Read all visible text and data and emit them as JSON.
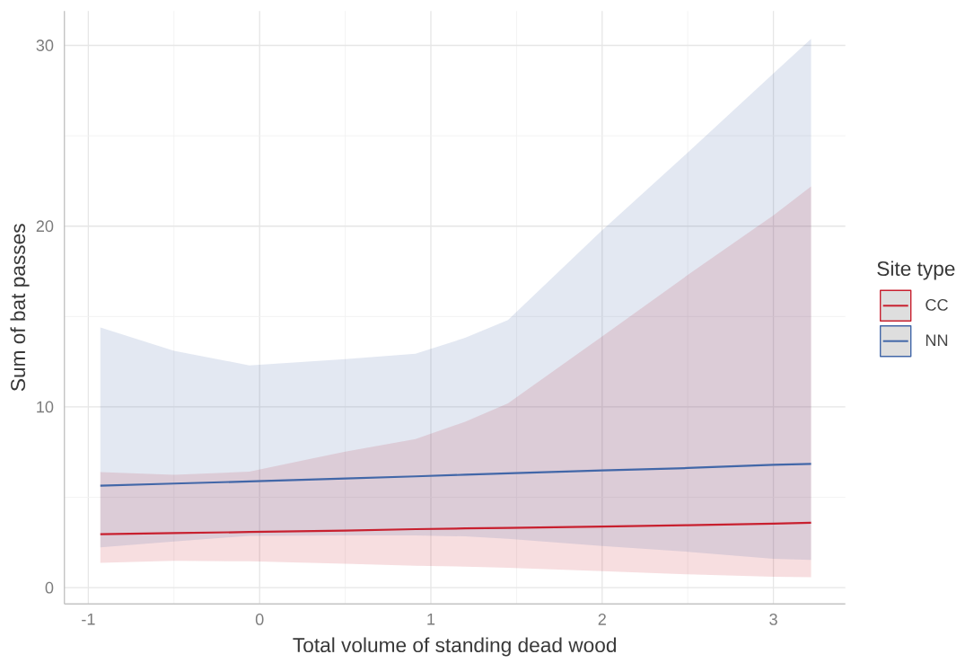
{
  "chart_data": {
    "type": "line",
    "xlabel": "Total volume of standing dead wood",
    "ylabel": "Sum of bat passes",
    "legend_title": "Site type",
    "x": [
      -0.93,
      -0.5,
      -0.06,
      0.5,
      0.91,
      1.2,
      1.45,
      2,
      2.5,
      3,
      3.22
    ],
    "series": [
      {
        "name": "CC",
        "color": "#c8202f",
        "values": [
          2.96,
          3.02,
          3.08,
          3.16,
          3.24,
          3.28,
          3.31,
          3.38,
          3.46,
          3.54,
          3.59
        ],
        "lower": [
          1.37,
          1.49,
          1.46,
          1.32,
          1.21,
          1.17,
          1.1,
          0.91,
          0.74,
          0.61,
          0.58
        ],
        "upper": [
          6.4,
          6.25,
          6.42,
          7.53,
          8.22,
          9.18,
          10.2,
          13.9,
          17.3,
          20.6,
          22.2
        ]
      },
      {
        "name": "NN",
        "color": "#4267a8",
        "values": [
          5.64,
          5.76,
          5.88,
          6.04,
          6.16,
          6.25,
          6.33,
          6.49,
          6.62,
          6.8,
          6.85
        ],
        "lower": [
          2.23,
          2.55,
          2.87,
          2.89,
          2.89,
          2.84,
          2.71,
          2.31,
          1.99,
          1.6,
          1.54
        ],
        "upper": [
          14.4,
          13.1,
          12.3,
          12.65,
          12.94,
          13.82,
          14.8,
          19.77,
          24.07,
          28.45,
          30.36
        ]
      }
    ],
    "xlim": [
      -1.14,
      3.42
    ],
    "ylim": [
      -0.9,
      31.9
    ],
    "xticks": [
      -1,
      {
        "value": -0.5,
        "label": null
      },
      0,
      {
        "value": 0.5,
        "label": null
      },
      1,
      {
        "value": 1.5,
        "label": null
      },
      2,
      {
        "value": 2.5,
        "label": null
      },
      3
    ],
    "yticks": [
      0,
      {
        "value": 5,
        "label": null
      },
      10,
      {
        "value": 15,
        "label": null
      },
      20,
      {
        "value": 25,
        "label": null
      },
      30
    ],
    "grid": true,
    "legend": "right",
    "marker": "none",
    "line_style": "solid"
  }
}
